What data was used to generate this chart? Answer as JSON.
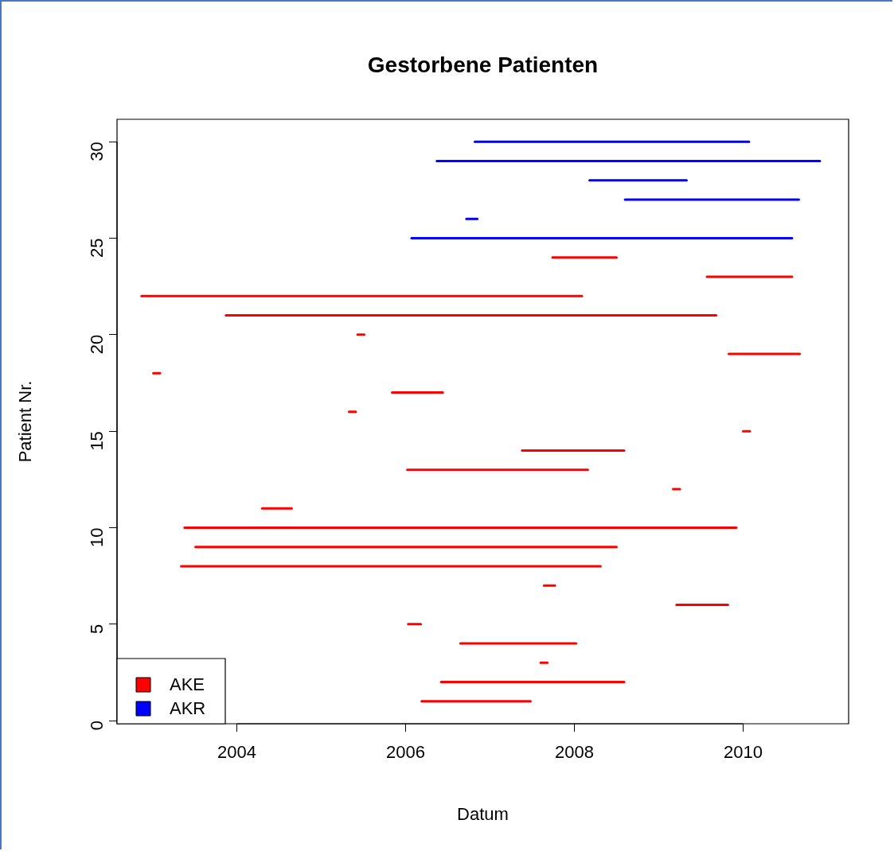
{
  "chart_data": {
    "type": "line",
    "title": "Gestorbene Patienten",
    "xlabel": "Datum",
    "ylabel": "Patient Nr.",
    "xlim": [
      2002.58,
      2011.25
    ],
    "xticks": [
      2004,
      2006,
      2008,
      2010
    ],
    "ylim": [
      -0.16,
      31.16
    ],
    "yticks": [
      0,
      5,
      10,
      15,
      20,
      25,
      30
    ],
    "legend": "bottom left",
    "series": [
      {
        "name": "AKE",
        "color": "#ff0000",
        "x": [
          2006.19,
          2007.48,
          null,
          2006.42,
          2008.59,
          null,
          2007.6,
          2007.68,
          null,
          2006.65,
          2008.02,
          null,
          2006.03,
          2006.18,
          null,
          2009.21,
          2009.82,
          null,
          2007.64,
          2007.77,
          null,
          2003.34,
          2008.31,
          null,
          2003.51,
          2008.5,
          null,
          2003.38,
          2009.92,
          null,
          2004.3,
          2004.65,
          null,
          2009.17,
          2009.25,
          null,
          2006.02,
          2008.16,
          null,
          2007.38,
          2008.59,
          null,
          2010,
          2010.08,
          null,
          2005.33,
          2005.41,
          null,
          2005.84,
          2006.44,
          null,
          2003.01,
          2003.09,
          null,
          2009.83,
          2010.67,
          null,
          2005.43,
          2005.51,
          null,
          2003.87,
          2009.68,
          null,
          2002.87,
          2008.09,
          null,
          2009.57,
          2010.58,
          null,
          2007.74,
          2008.5
        ],
        "values": [
          1,
          1,
          null,
          2,
          2,
          null,
          3,
          3,
          null,
          4,
          4,
          null,
          5,
          5,
          null,
          6,
          6,
          null,
          7,
          7,
          null,
          8,
          8,
          null,
          9,
          9,
          null,
          10,
          10,
          null,
          11,
          11,
          null,
          12,
          12,
          null,
          13,
          13,
          null,
          14,
          14,
          null,
          15,
          15,
          null,
          16,
          16,
          null,
          17,
          17,
          null,
          18,
          18,
          null,
          19,
          19,
          null,
          20,
          20,
          null,
          21,
          21,
          null,
          22,
          22,
          null,
          23,
          23,
          null,
          24,
          24
        ]
      },
      {
        "name": "AKR",
        "color": "#0000ff",
        "x": [
          2006.07,
          2010.58,
          null,
          2006.72,
          2006.85,
          null,
          2008.6,
          2010.66,
          null,
          2008.18,
          2009.33,
          null,
          2006.37,
          2010.91,
          null,
          2006.82,
          2010.07
        ],
        "values": [
          25,
          25,
          null,
          26,
          26,
          null,
          27,
          27,
          null,
          28,
          28,
          null,
          29,
          29,
          null,
          30,
          30
        ]
      }
    ]
  }
}
